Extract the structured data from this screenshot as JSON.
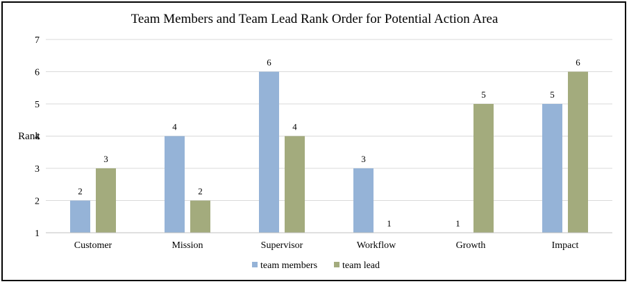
{
  "chart_data": {
    "type": "bar",
    "title": "Team Members and Team Lead Rank Order for Potential Action Area",
    "ylabel": "Rank",
    "xlabel": "",
    "ylim": [
      1,
      7
    ],
    "yticks": [
      1,
      2,
      3,
      4,
      5,
      6,
      7
    ],
    "grid": true,
    "legend_position": "bottom",
    "categories": [
      "Customer",
      "Mission",
      "Supervisor",
      "Workflow",
      "Growth",
      "Impact"
    ],
    "series": [
      {
        "name": "team members",
        "color": "#95b3d7",
        "values": [
          2,
          4,
          6,
          3,
          1,
          5
        ]
      },
      {
        "name": "team lead",
        "color": "#a3ab7d",
        "values": [
          3,
          2,
          4,
          1,
          5,
          6
        ]
      }
    ]
  }
}
